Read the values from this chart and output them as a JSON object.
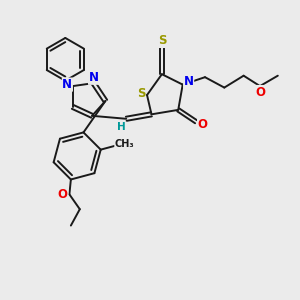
{
  "bg_color": "#ebebeb",
  "bond_color": "#1a1a1a",
  "bond_width": 1.4,
  "atom_colors": {
    "N": "#0000ee",
    "S": "#999900",
    "O": "#ee0000",
    "H": "#009999",
    "C": "#1a1a1a"
  },
  "font_size_atom": 8.5,
  "font_size_small": 7.0
}
